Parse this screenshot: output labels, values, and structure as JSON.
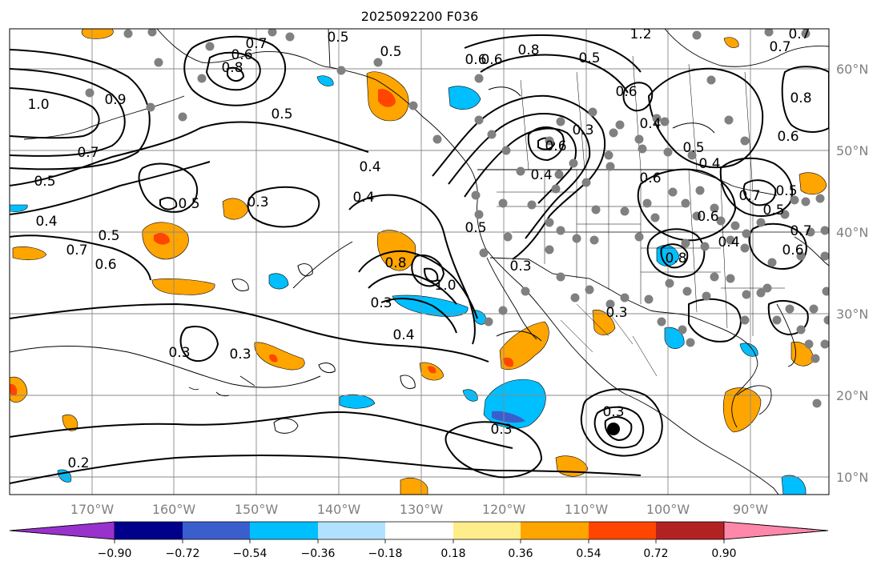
{
  "title": "2025092200 F036",
  "lon_labels": [
    "170°W",
    "160°W",
    "150°W",
    "140°W",
    "130°W",
    "120°W",
    "110°W",
    "100°W",
    "90°W"
  ],
  "lat_labels": [
    "60°N",
    "50°N",
    "40°N",
    "30°N",
    "20°N",
    "10°N"
  ],
  "colorbar": {
    "ticks": [
      "−0.90",
      "−0.72",
      "−0.54",
      "−0.36",
      "−0.18",
      "0.18",
      "0.36",
      "0.54",
      "0.72",
      "0.90"
    ],
    "colors": [
      "#9932cc",
      "#00008b",
      "#3a5fcd",
      "#00bfff",
      "#b0e2ff",
      "#ffffff",
      "#ffec8b",
      "#ffa500",
      "#ff4500",
      "#b22222",
      "#ff88aa"
    ]
  },
  "contour_labels": [
    "0.5",
    "0.5",
    "0.6",
    "0.8",
    "0.7",
    "0.5",
    "0.4",
    "0.6",
    "0.8",
    "0.6",
    "0.5",
    "1.0",
    "0.9",
    "0.7",
    "0.5",
    "0.4",
    "0.7",
    "0.6",
    "0.5",
    "0.5",
    "0.3",
    "0.4",
    "0.5",
    "0.8",
    "1.0",
    "0.3",
    "0.4",
    "0.3",
    "0.3",
    "0.3",
    "0.2",
    "0.3",
    "0.6",
    "0.3",
    "1.2",
    "0.6",
    "0.4",
    "0.6",
    "0.5",
    "0.4",
    "0.7",
    "0.5",
    "0.6",
    "0.4",
    "0.5",
    "0.6",
    "0.7",
    "0.8",
    "0.4",
    "0.3",
    "0.3",
    "0.7",
    "0.6",
    "0.8",
    "0.7"
  ]
}
